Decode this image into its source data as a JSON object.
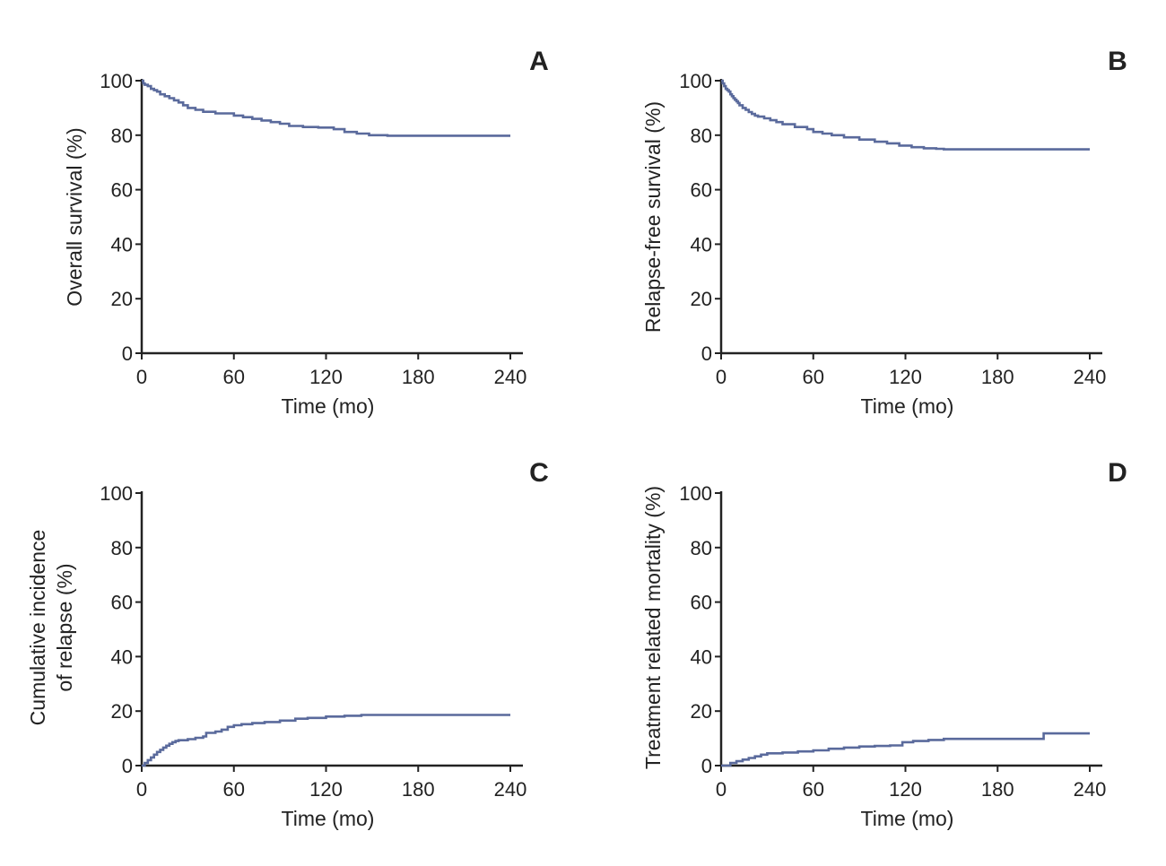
{
  "colors": {
    "line": "#5a6a9c",
    "axis": "#222222"
  },
  "chart_data": [
    {
      "type": "line",
      "step": true,
      "panel": "A",
      "title": "",
      "xlabel": "Time (mo)",
      "ylabel": [
        "Overall survival (%)"
      ],
      "xlim": [
        0,
        240
      ],
      "ylim": [
        0,
        100
      ],
      "xticks": [
        0,
        60,
        120,
        180,
        240
      ],
      "yticks": [
        0,
        20,
        40,
        60,
        80,
        100
      ],
      "series": [
        {
          "name": "Overall survival",
          "x": [
            0,
            1,
            2,
            4,
            6,
            8,
            10,
            12,
            15,
            18,
            21,
            24,
            27,
            30,
            35,
            40,
            48,
            60,
            66,
            72,
            78,
            84,
            90,
            96,
            105,
            115,
            125,
            132,
            140,
            148,
            160,
            180,
            200,
            220,
            240
          ],
          "y": [
            100,
            99,
            98.5,
            98,
            97,
            96.5,
            96,
            95,
            94.3,
            93.6,
            92.8,
            92,
            91,
            90,
            89.3,
            88.6,
            88,
            87.2,
            86.6,
            86,
            85.4,
            84.8,
            84.2,
            83.4,
            83,
            82.8,
            82.2,
            81.2,
            80.6,
            80,
            79.8,
            79.8,
            79.8,
            79.8,
            79.8
          ]
        }
      ]
    },
    {
      "type": "line",
      "step": true,
      "panel": "B",
      "title": "",
      "xlabel": "Time (mo)",
      "ylabel": [
        "Relapse-free survival (%)"
      ],
      "xlim": [
        0,
        240
      ],
      "ylim": [
        0,
        100
      ],
      "xticks": [
        0,
        60,
        120,
        180,
        240
      ],
      "yticks": [
        0,
        20,
        40,
        60,
        80,
        100
      ],
      "series": [
        {
          "name": "Relapse-free survival",
          "x": [
            0,
            1,
            2,
            3,
            4,
            5,
            6,
            7,
            8,
            9,
            10,
            11,
            12,
            14,
            16,
            18,
            20,
            22,
            24,
            28,
            32,
            36,
            40,
            48,
            56,
            60,
            66,
            72,
            80,
            90,
            100,
            108,
            116,
            124,
            132,
            140,
            145,
            160,
            180,
            200,
            220,
            240
          ],
          "y": [
            100,
            99,
            98,
            97,
            96.5,
            96,
            95,
            94.3,
            93.6,
            93,
            92.4,
            91.8,
            91,
            90,
            89.3,
            88.5,
            87.8,
            87.2,
            86.8,
            86.2,
            85.5,
            84.8,
            84,
            83,
            82.2,
            81.2,
            80.6,
            80,
            79.2,
            78.4,
            77.6,
            77,
            76.2,
            75.6,
            75.2,
            75,
            74.8,
            74.8,
            74.8,
            74.8,
            74.8,
            74.8
          ]
        }
      ]
    },
    {
      "type": "line",
      "step": true,
      "panel": "C",
      "title": "",
      "xlabel": "Time (mo)",
      "ylabel": [
        "Cumulative incidence",
        "of relapse (%)"
      ],
      "xlim": [
        0,
        240
      ],
      "ylim": [
        0,
        100
      ],
      "xticks": [
        0,
        60,
        120,
        180,
        240
      ],
      "yticks": [
        0,
        20,
        40,
        60,
        80,
        100
      ],
      "series": [
        {
          "name": "Cumulative incidence of relapse",
          "x": [
            0,
            2,
            4,
            6,
            8,
            10,
            12,
            14,
            16,
            18,
            20,
            22,
            24,
            30,
            35,
            40,
            42,
            48,
            52,
            56,
            60,
            65,
            72,
            80,
            90,
            100,
            108,
            120,
            132,
            143,
            160,
            180,
            200,
            220,
            240
          ],
          "y": [
            0,
            1,
            2,
            3,
            4,
            5,
            5.8,
            6.6,
            7.3,
            8,
            8.6,
            9,
            9.3,
            9.7,
            10.2,
            10.7,
            12,
            12.5,
            13.2,
            14.2,
            14.8,
            15.2,
            15.6,
            16,
            16.5,
            17.2,
            17.5,
            18,
            18.3,
            18.6,
            18.6,
            18.6,
            18.6,
            18.6,
            18.6
          ]
        }
      ]
    },
    {
      "type": "line",
      "step": true,
      "panel": "D",
      "title": "",
      "xlabel": "Time (mo)",
      "ylabel": [
        "Treatment related mortality (%)"
      ],
      "xlim": [
        0,
        240
      ],
      "ylim": [
        0,
        100
      ],
      "xticks": [
        0,
        60,
        120,
        180,
        240
      ],
      "yticks": [
        0,
        20,
        40,
        60,
        80,
        100
      ],
      "series": [
        {
          "name": "Treatment related mortality",
          "x": [
            0,
            6,
            10,
            14,
            18,
            22,
            26,
            30,
            40,
            50,
            60,
            70,
            80,
            90,
            100,
            110,
            118,
            125,
            135,
            145,
            160,
            180,
            200,
            210,
            220,
            240
          ],
          "y": [
            0,
            1,
            1.6,
            2.2,
            2.8,
            3.4,
            4,
            4.5,
            4.8,
            5.2,
            5.6,
            6.2,
            6.6,
            7,
            7.2,
            7.4,
            8.6,
            9,
            9.4,
            9.8,
            9.8,
            9.8,
            9.8,
            11.8,
            11.8,
            11.8
          ]
        }
      ]
    }
  ]
}
